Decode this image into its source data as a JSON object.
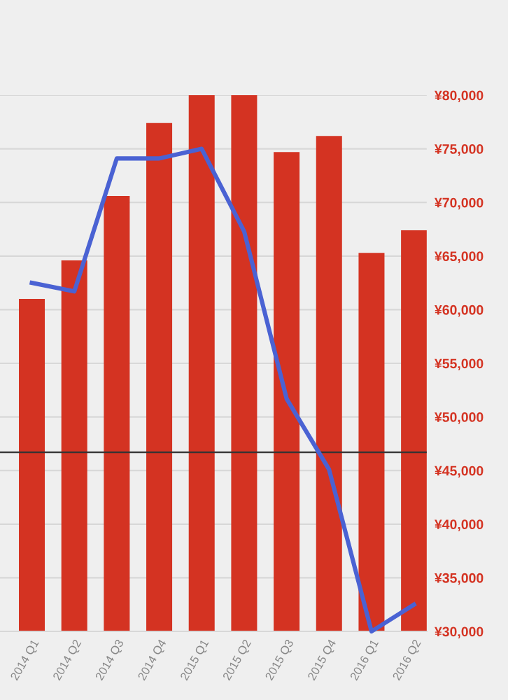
{
  "chart_data": {
    "type": "bar",
    "categories": [
      "2014 Q1",
      "2014 Q2",
      "2014 Q3",
      "2014 Q4",
      "2015 Q1",
      "2015 Q2",
      "2015 Q3",
      "2015 Q4",
      "2016 Q1",
      "2016 Q2"
    ],
    "series": [
      {
        "color": "#d43322",
        "values": [
          61000,
          64600,
          70600,
          77400,
          80000,
          80000,
          74700,
          76200,
          65300,
          67400
        ]
      },
      {
        "type": "line",
        "color": "#4a62d3",
        "values": [
          62500,
          61700,
          74100,
          74100,
          75000,
          67300,
          51700,
          45100,
          30000,
          32500
        ]
      }
    ],
    "ylim": [
      30000,
      80000
    ],
    "yticks": [
      {
        "value": 30000,
        "label": "¥30,000"
      },
      {
        "value": 35000,
        "label": "¥35,000"
      },
      {
        "value": 40000,
        "label": "¥40,000"
      },
      {
        "value": 45000,
        "label": "¥45,000"
      },
      {
        "value": 50000,
        "label": "¥50,000"
      },
      {
        "value": 55000,
        "label": "¥55,000"
      },
      {
        "value": 60000,
        "label": "¥60,000"
      },
      {
        "value": 65000,
        "label": "¥65,000"
      },
      {
        "value": 70000,
        "label": "¥70,000"
      },
      {
        "value": 75000,
        "label": "¥75,000"
      },
      {
        "value": 80000,
        "label": "¥80,000"
      }
    ],
    "grid": "y",
    "marker": "none",
    "line_style": "solid",
    "ref_lines": [
      {
        "axis": "y",
        "value": 46700,
        "color": "#333333"
      }
    ]
  }
}
